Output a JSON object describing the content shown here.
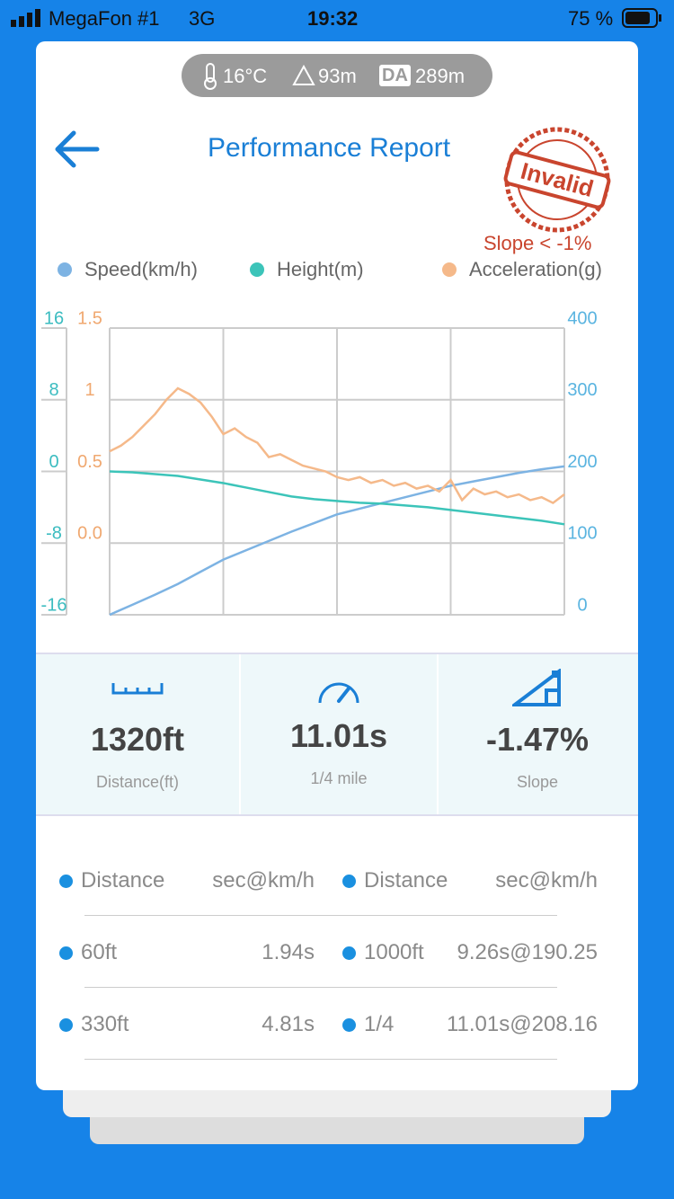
{
  "status_bar": {
    "carrier": "MegaFon #1",
    "network": "3G",
    "time": "19:32",
    "battery": "75 %"
  },
  "conditions": {
    "temperature": "16°C",
    "altitude": "93m",
    "da_label": "DA",
    "density_altitude": "289m"
  },
  "header": {
    "title": "Performance Report",
    "stamp": "Invalid",
    "stamp_note": "Slope < -1%"
  },
  "chart_data": {
    "type": "line",
    "series": [
      {
        "name": "Speed(km/h)",
        "color": "#7db3e3",
        "axis": "y2",
        "values": [
          0,
          14,
          28,
          43,
          60,
          77,
          90,
          103,
          116,
          128,
          140,
          148,
          156,
          164,
          172,
          180,
          186,
          192,
          198,
          203,
          207
        ]
      },
      {
        "name": "Height(m)",
        "color": "#3cc4b9",
        "axis": "y",
        "values": [
          0,
          -0.1,
          -0.3,
          -0.5,
          -0.9,
          -1.3,
          -1.8,
          -2.3,
          -2.8,
          -3.1,
          -3.3,
          -3.5,
          -3.6,
          -3.8,
          -4.0,
          -4.3,
          -4.6,
          -4.9,
          -5.2,
          -5.5,
          -5.9
        ]
      },
      {
        "name": "Acceleration(g)",
        "color": "#f5b98a",
        "axis": "y3",
        "values": [
          0.64,
          0.68,
          0.74,
          0.82,
          0.9,
          1.0,
          1.08,
          1.04,
          0.98,
          0.88,
          0.76,
          0.8,
          0.74,
          0.7,
          0.6,
          0.62,
          0.58,
          0.54,
          0.52,
          0.5,
          0.46,
          0.44,
          0.46,
          0.42,
          0.44,
          0.4,
          0.42,
          0.38,
          0.4,
          0.36,
          0.44,
          0.3,
          0.38,
          0.34,
          0.36,
          0.32,
          0.34,
          0.3,
          0.32,
          0.28,
          0.34
        ]
      }
    ],
    "ylim": [
      -16,
      16
    ],
    "yticks": [
      16,
      8,
      0,
      -8,
      -16
    ],
    "y2lim": [
      0,
      400
    ],
    "y2ticks": [
      400,
      300,
      200,
      100,
      0
    ],
    "y3lim": [
      -0.5,
      1.5
    ],
    "y3ticks": [
      1.5,
      1,
      0.5,
      {
        "value": 0,
        "label": "0.0"
      }
    ],
    "tick_colors": {
      "y": "#3bbcc0",
      "y2": "#5ab4e0",
      "y3": "#f0a870"
    },
    "grid": true,
    "x_grid_divisions": 4
  },
  "stats": [
    {
      "value": "1320ft",
      "label": "Distance(ft)"
    },
    {
      "value": "11.01s",
      "label": "1/4 mile"
    },
    {
      "value": "-1.47%",
      "label": "Slope"
    }
  ],
  "table": {
    "header": [
      "Distance",
      "sec@km/h",
      "Distance",
      "sec@km/h"
    ],
    "rows": [
      [
        "60ft",
        "1.94s",
        "1000ft",
        "9.26s@190.25"
      ],
      [
        "330ft",
        "4.81s",
        "1/4",
        "11.01s@208.16"
      ]
    ]
  }
}
